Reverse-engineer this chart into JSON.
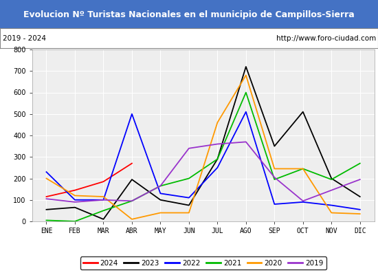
{
  "title": "Evolucion Nº Turistas Nacionales en el municipio de Campillos-Sierra",
  "subtitle_left": "2019 - 2024",
  "subtitle_right": "http://www.foro-ciudad.com",
  "months": [
    "ENE",
    "FEB",
    "MAR",
    "ABR",
    "MAY",
    "JUN",
    "JUL",
    "AGO",
    "SEP",
    "OCT",
    "NOV",
    "DIC"
  ],
  "ylim": [
    0,
    800
  ],
  "yticks": [
    0,
    100,
    200,
    300,
    400,
    500,
    600,
    700,
    800
  ],
  "series": {
    "2024": {
      "color": "#ff0000",
      "data": [
        115,
        145,
        185,
        270,
        null,
        null,
        null,
        null,
        null,
        null,
        null,
        null
      ]
    },
    "2023": {
      "color": "#000000",
      "data": [
        55,
        65,
        10,
        195,
        100,
        75,
        290,
        720,
        350,
        510,
        200,
        115
      ]
    },
    "2022": {
      "color": "#0000ff",
      "data": [
        230,
        100,
        100,
        500,
        130,
        110,
        250,
        510,
        80,
        90,
        75,
        55
      ]
    },
    "2021": {
      "color": "#00bb00",
      "data": [
        5,
        0,
        50,
        95,
        165,
        200,
        290,
        600,
        195,
        245,
        195,
        270
      ]
    },
    "2020": {
      "color": "#ff9900",
      "data": [
        200,
        120,
        115,
        10,
        40,
        40,
        460,
        680,
        245,
        245,
        40,
        35
      ]
    },
    "2019": {
      "color": "#9933cc",
      "data": [
        105,
        90,
        100,
        95,
        165,
        340,
        360,
        370,
        205,
        95,
        145,
        195
      ]
    }
  },
  "title_bg_color": "#4472c4",
  "title_text_color": "#ffffff",
  "plot_bg_color": "#eeeeee",
  "grid_color": "#ffffff",
  "border_color": "#a0a0a0",
  "subtitle_box_color": "#ffffff",
  "subtitle_text_color": "#000000",
  "legend_order": [
    "2024",
    "2023",
    "2022",
    "2021",
    "2020",
    "2019"
  ]
}
